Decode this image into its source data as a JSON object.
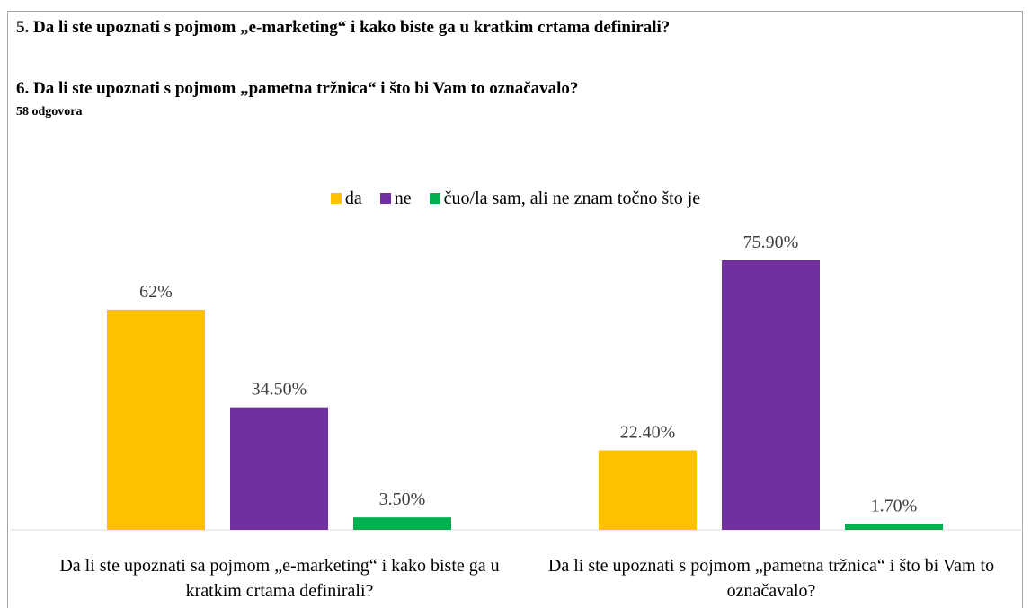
{
  "chart_data": {
    "type": "bar",
    "title_lines": [
      "5. Da li ste upoznati s pojmom „e-marketing“ i kako biste ga u kratkim crtama definirali?",
      "6. Da li ste upoznati s pojmom „pametna tržnica“ i što bi Vam to označavalo?"
    ],
    "subtitle": "58 odgovora",
    "categories": [
      "Da li ste upoznati sa pojmom „e-marketing“ i kako biste ga u kratkim crtama definirali?",
      "Da li ste upoznati s pojmom „pametna tržnica“ i što bi Vam to označavalo?"
    ],
    "series": [
      {
        "name": "da",
        "color": "#ffc000",
        "values": [
          62,
          22.4
        ],
        "value_labels": [
          "62%",
          "22.40%"
        ]
      },
      {
        "name": "ne",
        "color": "#7030a0",
        "values": [
          34.5,
          75.9
        ],
        "value_labels": [
          "34.50%",
          "75.90%"
        ]
      },
      {
        "name": "čuo/la sam, ali ne znam točno što je",
        "color": "#00b050",
        "values": [
          3.5,
          1.7
        ],
        "value_labels": [
          "3.50%",
          "1.70%"
        ]
      }
    ],
    "legend": "top"
  }
}
